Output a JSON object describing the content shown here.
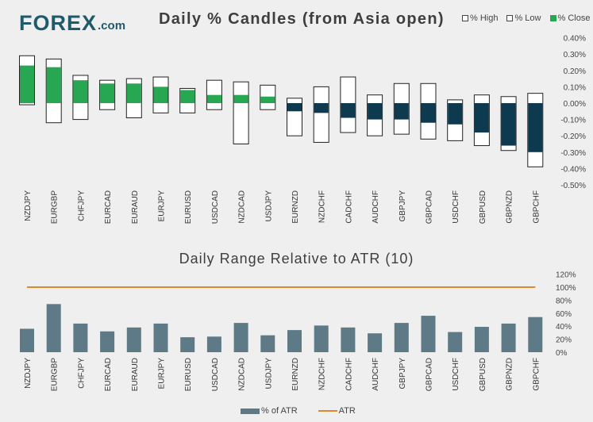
{
  "logo": {
    "main": "FOREX",
    "domain": ".com"
  },
  "colors": {
    "positive_close": "#27a751",
    "negative_close": "#0e3a4f",
    "range_box": "#ffffff",
    "atr_bar": "#5f7a87",
    "atr_line": "#e08a2e",
    "brand": "#1f5a6a"
  },
  "chart_data": [
    {
      "type": "candlestick-bar",
      "title": "Daily % Candles (from Asia open)",
      "legend": {
        "high": "% High",
        "low": "% Low",
        "close": "% Close"
      },
      "y_ticks": [
        "0.40%",
        "0.30%",
        "0.20%",
        "0.10%",
        "0.00%",
        "-0.10%",
        "-0.20%",
        "-0.30%",
        "-0.40%",
        "-0.50%"
      ],
      "ylim": [
        -0.5,
        0.4
      ],
      "categories": [
        "NZDJPY",
        "EURGBP",
        "CHFJPY",
        "EURCAD",
        "EURAUD",
        "EURJPY",
        "EURUSD",
        "USDCAD",
        "NZDCAD",
        "USDJPY",
        "EURNZD",
        "NZDCHF",
        "CADCHF",
        "AUDCHF",
        "GBPJPY",
        "GBPCAD",
        "USDCHF",
        "GBPUSD",
        "GBPNZD",
        "GBPCHF"
      ],
      "series": [
        {
          "name": "% High",
          "values": [
            0.29,
            0.27,
            0.17,
            0.14,
            0.15,
            0.16,
            0.09,
            0.14,
            0.13,
            0.11,
            0.03,
            0.1,
            0.16,
            0.05,
            0.12,
            0.12,
            0.02,
            0.05,
            0.04,
            0.06
          ]
        },
        {
          "name": "% Low",
          "values": [
            -0.01,
            -0.12,
            -0.1,
            -0.04,
            -0.09,
            -0.06,
            -0.06,
            -0.04,
            -0.25,
            -0.04,
            -0.2,
            -0.24,
            -0.18,
            -0.2,
            -0.19,
            -0.22,
            -0.23,
            -0.26,
            -0.29,
            -0.39
          ]
        },
        {
          "name": "% Close",
          "values": [
            0.23,
            0.22,
            0.14,
            0.12,
            0.12,
            0.1,
            0.08,
            0.05,
            0.05,
            0.04,
            -0.05,
            -0.06,
            -0.09,
            -0.1,
            -0.1,
            -0.12,
            -0.13,
            -0.18,
            -0.26,
            -0.3
          ]
        }
      ]
    },
    {
      "type": "bar",
      "title": "Daily Range Relative to ATR (10)",
      "legend": {
        "bars": "% of ATR",
        "line": "ATR"
      },
      "y_ticks": [
        "120%",
        "100%",
        "80%",
        "60%",
        "40%",
        "20%",
        "0%"
      ],
      "ylim": [
        0,
        120
      ],
      "categories": [
        "NZDJPY",
        "EURGBP",
        "CHFJPY",
        "EURCAD",
        "EURAUD",
        "EURJPY",
        "EURUSD",
        "USDCAD",
        "NZDCAD",
        "USDJPY",
        "EURNZD",
        "NZDCHF",
        "CADCHF",
        "AUDCHF",
        "GBPJPY",
        "GBPCAD",
        "USDCHF",
        "GBPUSD",
        "GBPNZD",
        "GBPCHF"
      ],
      "series": [
        {
          "name": "% of ATR",
          "values": [
            36,
            74,
            44,
            32,
            38,
            44,
            23,
            24,
            45,
            26,
            34,
            41,
            38,
            29,
            45,
            56,
            31,
            39,
            44,
            54
          ]
        },
        {
          "name": "ATR",
          "values": [
            100,
            100,
            100,
            100,
            100,
            100,
            100,
            100,
            100,
            100,
            100,
            100,
            100,
            100,
            100,
            100,
            100,
            100,
            100,
            100
          ]
        }
      ]
    }
  ]
}
